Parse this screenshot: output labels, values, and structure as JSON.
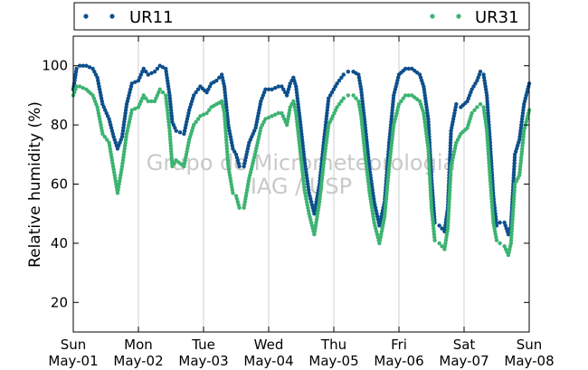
{
  "chart_data": {
    "type": "scatter",
    "ylabel": "Relative humidity (%)",
    "xlabel": "",
    "ylim": [
      10,
      110
    ],
    "xlim": [
      0,
      7
    ],
    "yticks": [
      20,
      40,
      60,
      80,
      100
    ],
    "x_tick_labels": [
      {
        "x": 0,
        "day": "Sun",
        "date": "May-01"
      },
      {
        "x": 1,
        "day": "Mon",
        "date": "May-02"
      },
      {
        "x": 2,
        "day": "Tue",
        "date": "May-03"
      },
      {
        "x": 3,
        "day": "Wed",
        "date": "May-04"
      },
      {
        "x": 4,
        "day": "Thu",
        "date": "May-05"
      },
      {
        "x": 5,
        "day": "Fri",
        "date": "May-06"
      },
      {
        "x": 6,
        "day": "Sat",
        "date": "May-07"
      },
      {
        "x": 7,
        "day": "Sun",
        "date": "May-08"
      }
    ],
    "grid": "vertical",
    "legend_placement": "top",
    "watermark": [
      "Grupo de Micrometeorologia",
      "IAG / USP"
    ],
    "series": [
      {
        "name": "UR11",
        "color": "#0d4f8b",
        "points": [
          [
            0.0,
            92
          ],
          [
            0.05,
            99
          ],
          [
            0.1,
            100
          ],
          [
            0.2,
            100
          ],
          [
            0.3,
            99
          ],
          [
            0.37,
            96
          ],
          [
            0.45,
            87
          ],
          [
            0.55,
            82
          ],
          [
            0.62,
            76
          ],
          [
            0.68,
            72
          ],
          [
            0.75,
            76
          ],
          [
            0.82,
            87
          ],
          [
            0.9,
            94
          ],
          [
            1.0,
            95
          ],
          [
            1.08,
            99
          ],
          [
            1.15,
            97
          ],
          [
            1.25,
            98
          ],
          [
            1.33,
            100
          ],
          [
            1.42,
            99
          ],
          [
            1.48,
            90
          ],
          [
            1.52,
            81
          ],
          [
            1.58,
            78
          ],
          [
            1.7,
            77
          ],
          [
            1.78,
            85
          ],
          [
            1.85,
            90
          ],
          [
            1.95,
            93
          ],
          [
            2.05,
            91
          ],
          [
            2.12,
            94
          ],
          [
            2.2,
            95
          ],
          [
            2.28,
            97
          ],
          [
            2.32,
            93
          ],
          [
            2.38,
            80
          ],
          [
            2.45,
            72
          ],
          [
            2.5,
            70
          ],
          [
            2.55,
            66
          ],
          [
            2.62,
            66
          ],
          [
            2.7,
            74
          ],
          [
            2.8,
            79
          ],
          [
            2.88,
            88
          ],
          [
            2.95,
            92
          ],
          [
            3.05,
            92
          ],
          [
            3.15,
            93
          ],
          [
            3.2,
            93
          ],
          [
            3.28,
            90
          ],
          [
            3.33,
            94
          ],
          [
            3.38,
            96
          ],
          [
            3.42,
            93
          ],
          [
            3.48,
            82
          ],
          [
            3.55,
            68
          ],
          [
            3.62,
            57
          ],
          [
            3.7,
            50
          ],
          [
            3.78,
            60
          ],
          [
            3.85,
            75
          ],
          [
            3.92,
            89
          ],
          [
            4.05,
            94
          ],
          [
            4.15,
            97
          ],
          [
            4.22,
            98
          ],
          [
            4.3,
            98
          ],
          [
            4.38,
            97
          ],
          [
            4.42,
            92
          ],
          [
            4.48,
            80
          ],
          [
            4.55,
            65
          ],
          [
            4.62,
            54
          ],
          [
            4.7,
            46
          ],
          [
            4.78,
            54
          ],
          [
            4.85,
            74
          ],
          [
            4.92,
            90
          ],
          [
            5.0,
            97
          ],
          [
            5.1,
            99
          ],
          [
            5.2,
            99
          ],
          [
            5.32,
            97
          ],
          [
            5.38,
            93
          ],
          [
            5.45,
            82
          ],
          [
            5.5,
            62
          ],
          [
            5.55,
            47
          ],
          [
            5.62,
            46
          ],
          [
            5.7,
            44
          ],
          [
            5.75,
            52
          ],
          [
            5.8,
            78
          ],
          [
            5.88,
            87
          ],
          [
            5.95,
            86
          ],
          [
            6.05,
            88
          ],
          [
            6.12,
            92
          ],
          [
            6.2,
            95
          ],
          [
            6.25,
            98
          ],
          [
            6.3,
            97
          ],
          [
            6.35,
            90
          ],
          [
            6.4,
            74
          ],
          [
            6.45,
            56
          ],
          [
            6.5,
            46
          ],
          [
            6.55,
            47
          ],
          [
            6.62,
            47
          ],
          [
            6.68,
            43
          ],
          [
            6.72,
            46
          ],
          [
            6.78,
            70
          ],
          [
            6.85,
            75
          ],
          [
            6.92,
            87
          ],
          [
            7.0,
            94
          ]
        ]
      },
      {
        "name": "UR31",
        "color": "#3cb371",
        "points": [
          [
            0.0,
            90
          ],
          [
            0.05,
            93
          ],
          [
            0.1,
            93
          ],
          [
            0.2,
            92
          ],
          [
            0.3,
            90
          ],
          [
            0.37,
            86
          ],
          [
            0.45,
            77
          ],
          [
            0.55,
            74
          ],
          [
            0.62,
            65
          ],
          [
            0.68,
            57
          ],
          [
            0.75,
            66
          ],
          [
            0.82,
            77
          ],
          [
            0.9,
            85
          ],
          [
            1.0,
            86
          ],
          [
            1.08,
            90
          ],
          [
            1.15,
            88
          ],
          [
            1.25,
            88
          ],
          [
            1.33,
            92
          ],
          [
            1.42,
            90
          ],
          [
            1.48,
            78
          ],
          [
            1.52,
            66
          ],
          [
            1.58,
            68
          ],
          [
            1.7,
            66
          ],
          [
            1.78,
            75
          ],
          [
            1.85,
            80
          ],
          [
            1.95,
            83
          ],
          [
            2.05,
            84
          ],
          [
            2.12,
            86
          ],
          [
            2.2,
            87
          ],
          [
            2.28,
            88
          ],
          [
            2.32,
            84
          ],
          [
            2.38,
            66
          ],
          [
            2.45,
            57
          ],
          [
            2.5,
            56
          ],
          [
            2.55,
            52
          ],
          [
            2.62,
            52
          ],
          [
            2.7,
            62
          ],
          [
            2.8,
            71
          ],
          [
            2.88,
            79
          ],
          [
            2.95,
            82
          ],
          [
            3.05,
            83
          ],
          [
            3.15,
            84
          ],
          [
            3.2,
            84
          ],
          [
            3.28,
            80
          ],
          [
            3.33,
            86
          ],
          [
            3.38,
            88
          ],
          [
            3.42,
            84
          ],
          [
            3.48,
            72
          ],
          [
            3.55,
            58
          ],
          [
            3.62,
            50
          ],
          [
            3.7,
            43
          ],
          [
            3.78,
            54
          ],
          [
            3.85,
            68
          ],
          [
            3.92,
            80
          ],
          [
            4.05,
            86
          ],
          [
            4.15,
            89
          ],
          [
            4.22,
            90
          ],
          [
            4.3,
            90
          ],
          [
            4.38,
            88
          ],
          [
            4.42,
            83
          ],
          [
            4.48,
            70
          ],
          [
            4.55,
            57
          ],
          [
            4.62,
            47
          ],
          [
            4.7,
            40
          ],
          [
            4.78,
            49
          ],
          [
            4.85,
            66
          ],
          [
            4.92,
            80
          ],
          [
            5.0,
            87
          ],
          [
            5.1,
            90
          ],
          [
            5.2,
            90
          ],
          [
            5.32,
            88
          ],
          [
            5.38,
            84
          ],
          [
            5.45,
            72
          ],
          [
            5.5,
            52
          ],
          [
            5.55,
            41
          ],
          [
            5.62,
            40
          ],
          [
            5.7,
            38
          ],
          [
            5.75,
            45
          ],
          [
            5.8,
            66
          ],
          [
            5.88,
            74
          ],
          [
            5.95,
            77
          ],
          [
            6.05,
            79
          ],
          [
            6.12,
            84
          ],
          [
            6.2,
            86
          ],
          [
            6.25,
            87
          ],
          [
            6.3,
            86
          ],
          [
            6.35,
            78
          ],
          [
            6.4,
            62
          ],
          [
            6.45,
            47
          ],
          [
            6.5,
            41
          ],
          [
            6.55,
            40
          ],
          [
            6.62,
            39
          ],
          [
            6.68,
            36
          ],
          [
            6.72,
            40
          ],
          [
            6.78,
            60
          ],
          [
            6.85,
            63
          ],
          [
            6.92,
            78
          ],
          [
            7.0,
            85
          ]
        ]
      }
    ]
  }
}
